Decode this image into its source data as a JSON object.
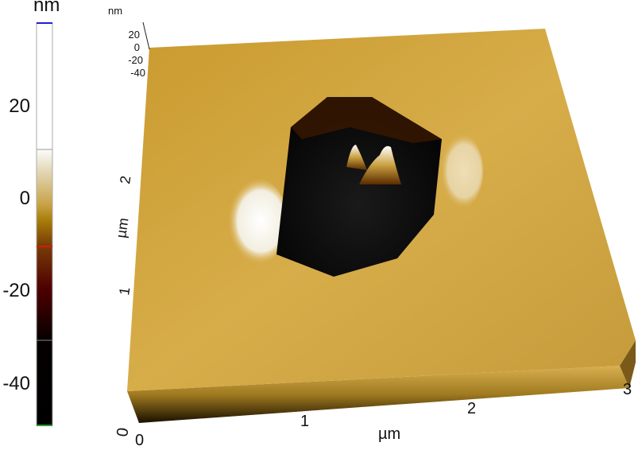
{
  "chart_data": {
    "type": "heatmap",
    "title": "",
    "colorbar": {
      "unit": "nm",
      "ticks": [
        "20",
        "0",
        "-20",
        "-40"
      ],
      "tick_values": [
        20,
        0,
        -20,
        -40
      ],
      "range": [
        -48,
        36
      ],
      "colors": [
        "#000000",
        "#5a0000",
        "#b08a10",
        "#ffffff"
      ]
    },
    "axes": {
      "x": {
        "label": "µm",
        "ticks": [
          "0",
          "1",
          "2",
          "3"
        ],
        "range": [
          0,
          3
        ]
      },
      "y": {
        "label": "µm",
        "ticks": [
          "0",
          "1",
          "2"
        ],
        "range": [
          0,
          3
        ]
      },
      "z": {
        "label": "nm",
        "ticks": [
          "20",
          "0",
          "-20",
          "-40"
        ]
      }
    },
    "features": [
      "octagonal pit",
      "two peaks in pit",
      "bright rim left of pit"
    ]
  }
}
